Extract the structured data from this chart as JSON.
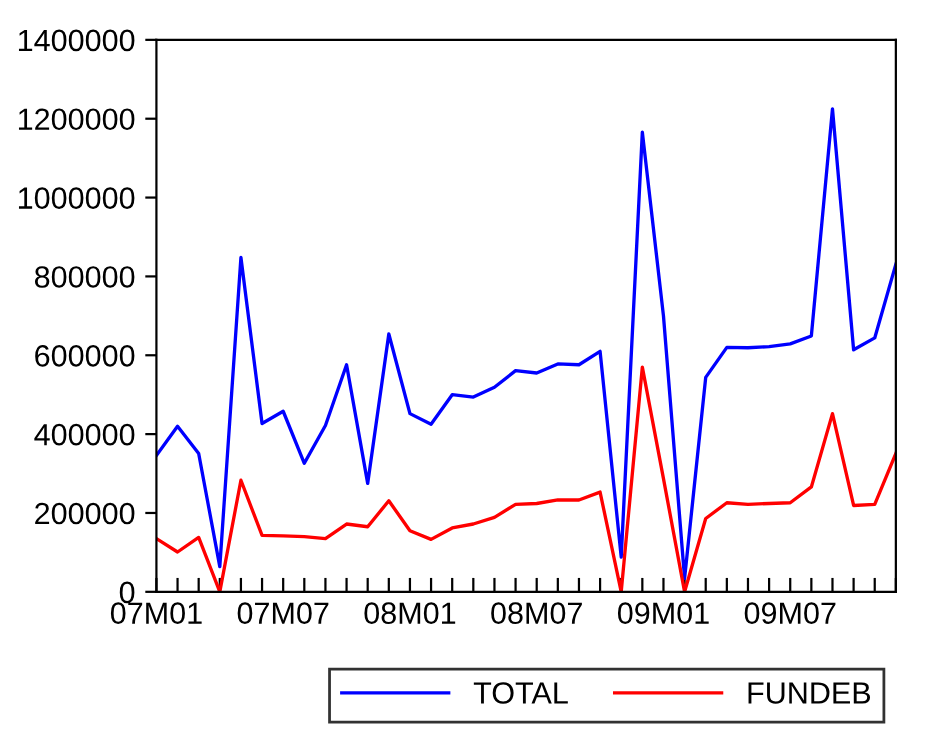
{
  "chart_data": {
    "type": "line",
    "categories": [
      "07M01",
      null,
      null,
      null,
      null,
      null,
      "07M07",
      null,
      null,
      null,
      null,
      null,
      "08M01",
      null,
      null,
      null,
      null,
      null,
      "08M07",
      null,
      null,
      null,
      null,
      null,
      "09M01",
      null,
      null,
      null,
      null,
      null,
      "09M07",
      null,
      null,
      null,
      null,
      null
    ],
    "series": [
      {
        "name": "TOTAL",
        "color": "#0000ff",
        "values": [
          346000,
          420000,
          351000,
          64000,
          848000,
          427000,
          458000,
          326000,
          422000,
          576000,
          275000,
          654000,
          452000,
          425000,
          500000,
          494000,
          519000,
          561000,
          555000,
          578000,
          576000,
          610000,
          88000,
          1166000,
          700000,
          34000,
          544000,
          620000,
          619000,
          622000,
          629000,
          649000,
          1225000,
          614000,
          644000,
          831000
        ]
      },
      {
        "name": "FUNDEB",
        "color": "#ff0000",
        "values": [
          135000,
          101000,
          138000,
          0,
          283000,
          143000,
          142000,
          140000,
          135000,
          172000,
          165000,
          231000,
          155000,
          133000,
          162000,
          172000,
          189000,
          222000,
          224000,
          233000,
          233000,
          253000,
          0,
          570000,
          287000,
          0,
          186000,
          226000,
          222000,
          224000,
          226000,
          266000,
          452000,
          219000,
          222000,
          351000
        ]
      }
    ],
    "ylim": [
      0,
      1400000
    ],
    "yticks": [
      0,
      200000,
      400000,
      600000,
      800000,
      1000000,
      1200000,
      1400000
    ],
    "grid": false,
    "legend": "bottom",
    "marker": "none",
    "line_style": "solid"
  }
}
